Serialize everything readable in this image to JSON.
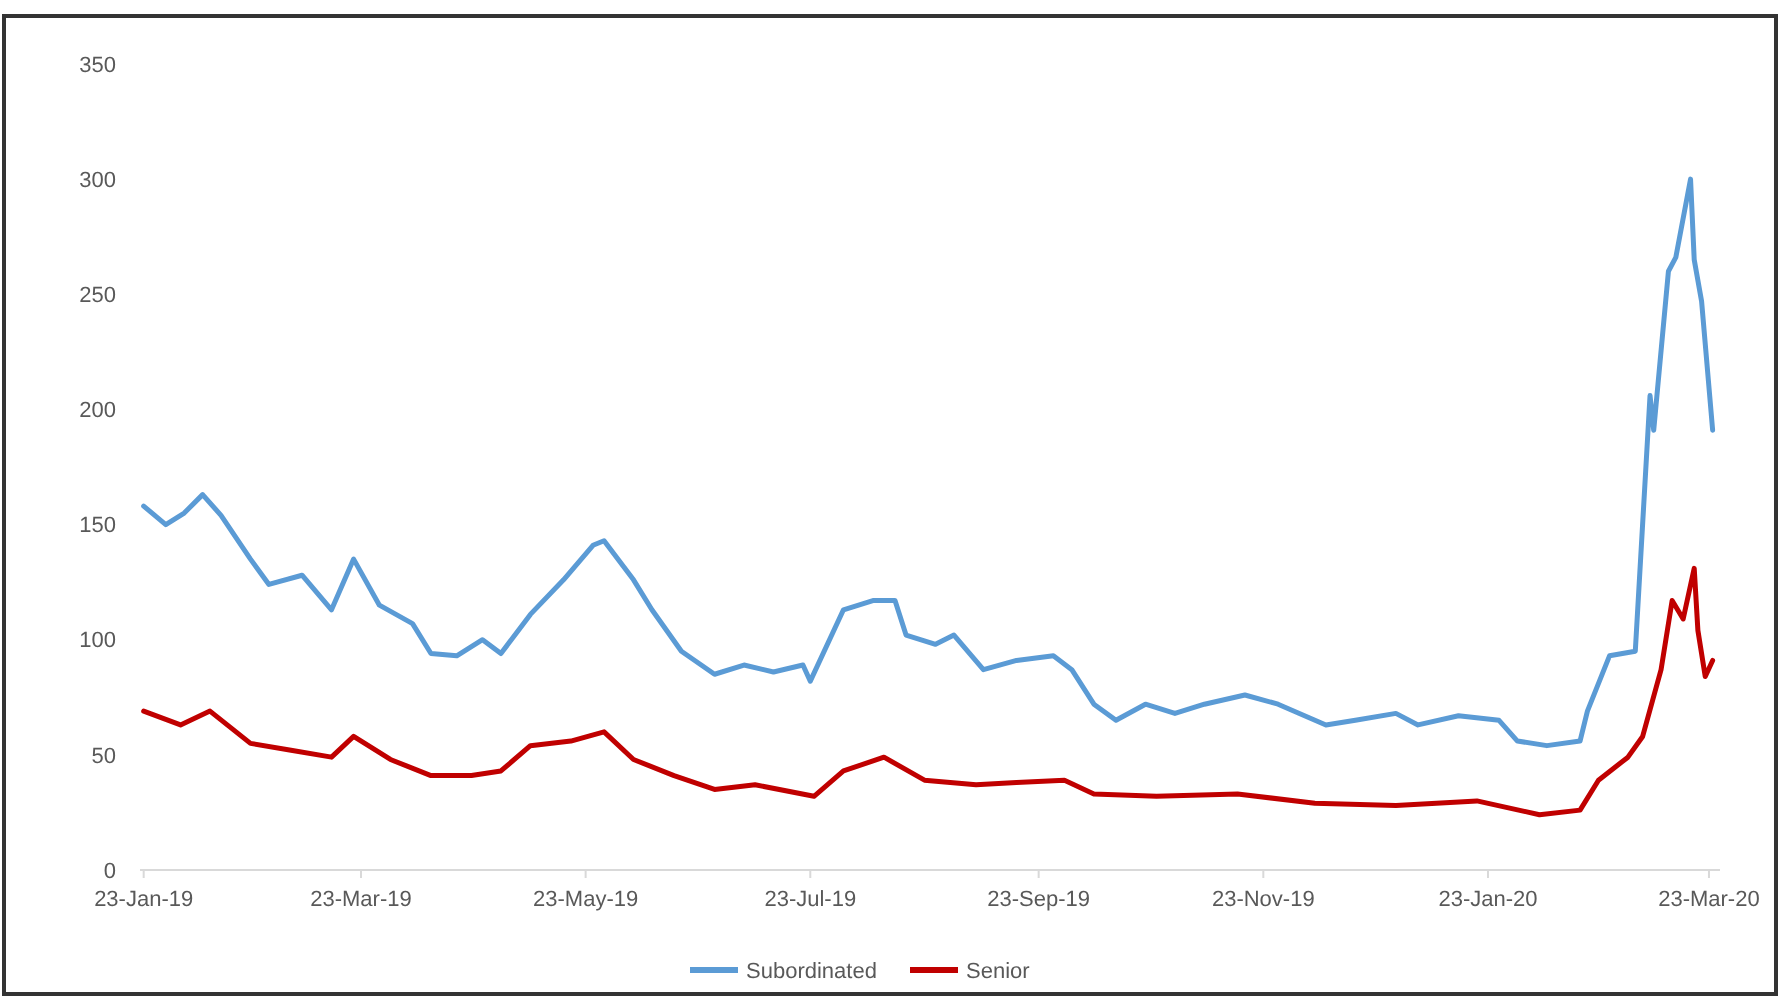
{
  "chart_data": {
    "type": "line",
    "xlim": [
      "2019-01-22",
      "2020-03-26"
    ],
    "ylim": [
      0,
      350
    ],
    "yticks": [
      0,
      50,
      100,
      150,
      200,
      250,
      300,
      350
    ],
    "xticks": [
      {
        "value": "2019-01-23",
        "label": "23-Jan-19"
      },
      {
        "value": "2019-03-23",
        "label": "23-Mar-19"
      },
      {
        "value": "2019-05-23",
        "label": "23-May-19"
      },
      {
        "value": "2019-07-23",
        "label": "23-Jul-19"
      },
      {
        "value": "2019-09-23",
        "label": "23-Sep-19"
      },
      {
        "value": "2019-11-23",
        "label": "23-Nov-19"
      },
      {
        "value": "2020-01-23",
        "label": "23-Jan-20"
      },
      {
        "value": "2020-03-23",
        "label": "23-Mar-20"
      }
    ],
    "grid": false,
    "legend": "bottom",
    "marker": "none",
    "line_style": "solid",
    "series": [
      {
        "name": "Subordinated",
        "color": "#5b9bd5",
        "x": [
          "2019-01-23",
          "2019-01-29",
          "2019-02-03",
          "2019-02-08",
          "2019-02-13",
          "2019-02-21",
          "2019-02-26",
          "2019-03-07",
          "2019-03-15",
          "2019-03-21",
          "2019-03-28",
          "2019-04-06",
          "2019-04-11",
          "2019-04-18",
          "2019-04-25",
          "2019-04-30",
          "2019-05-08",
          "2019-05-17",
          "2019-05-25",
          "2019-05-28",
          "2019-06-05",
          "2019-06-10",
          "2019-06-18",
          "2019-06-27",
          "2019-07-05",
          "2019-07-13",
          "2019-07-21",
          "2019-07-23",
          "2019-08-01",
          "2019-08-09",
          "2019-08-15",
          "2019-08-18",
          "2019-08-26",
          "2019-08-31",
          "2019-09-08",
          "2019-09-17",
          "2019-09-27",
          "2019-10-02",
          "2019-10-08",
          "2019-10-14",
          "2019-10-22",
          "2019-10-30",
          "2019-11-07",
          "2019-11-18",
          "2019-11-27",
          "2019-12-10",
          "2019-12-18",
          "2019-12-29",
          "2020-01-04",
          "2020-01-15",
          "2020-01-26",
          "2020-01-31",
          "2020-02-08",
          "2020-02-17",
          "2020-02-19",
          "2020-02-25",
          "2020-03-03",
          "2020-03-07",
          "2020-03-08",
          "2020-03-12",
          "2020-03-14",
          "2020-03-18",
          "2020-03-19",
          "2020-03-21",
          "2020-03-24"
        ],
        "values": [
          158,
          150,
          155,
          163,
          154,
          135,
          124,
          128,
          113,
          135,
          115,
          107,
          94,
          93,
          100,
          94,
          111,
          126,
          141,
          143,
          126,
          113,
          95,
          85,
          89,
          86,
          89,
          82,
          113,
          117,
          117,
          102,
          98,
          102,
          87,
          91,
          93,
          87,
          72,
          65,
          72,
          68,
          72,
          76,
          72,
          63,
          65,
          68,
          63,
          67,
          65,
          56,
          54,
          56,
          69,
          93,
          95,
          206,
          191,
          260,
          266,
          300,
          265,
          247,
          191
        ]
      },
      {
        "name": "Senior",
        "color": "#c00000",
        "x": [
          "2019-01-23",
          "2019-02-02",
          "2019-02-10",
          "2019-02-21",
          "2019-03-04",
          "2019-03-15",
          "2019-03-21",
          "2019-03-31",
          "2019-04-11",
          "2019-04-22",
          "2019-04-30",
          "2019-05-08",
          "2019-05-19",
          "2019-05-28",
          "2019-06-05",
          "2019-06-16",
          "2019-06-27",
          "2019-07-08",
          "2019-07-24",
          "2019-08-01",
          "2019-08-12",
          "2019-08-23",
          "2019-09-06",
          "2019-09-17",
          "2019-09-30",
          "2019-10-08",
          "2019-10-25",
          "2019-11-16",
          "2019-12-07",
          "2019-12-29",
          "2020-01-20",
          "2020-02-06",
          "2020-02-17",
          "2020-02-22",
          "2020-03-01",
          "2020-03-05",
          "2020-03-10",
          "2020-03-13",
          "2020-03-16",
          "2020-03-19",
          "2020-03-20",
          "2020-03-22",
          "2020-03-24"
        ],
        "values": [
          69,
          63,
          69,
          55,
          52,
          49,
          58,
          48,
          41,
          41,
          43,
          54,
          56,
          60,
          48,
          41,
          35,
          37,
          32,
          43,
          49,
          39,
          37,
          38,
          39,
          33,
          32,
          33,
          29,
          28,
          30,
          24,
          26,
          39,
          49,
          58,
          87,
          117,
          109,
          131,
          104,
          84,
          91
        ]
      }
    ]
  }
}
